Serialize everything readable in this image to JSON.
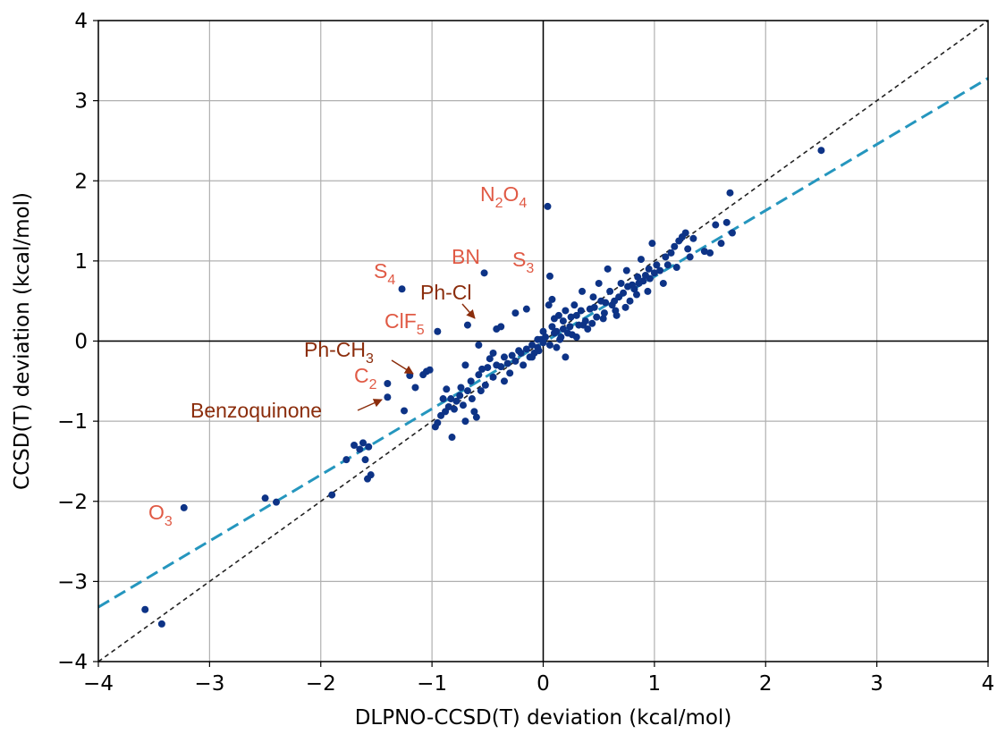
{
  "colors": {
    "points": "#0d3386",
    "fit_line": "#2596be",
    "identity_line": "#222222",
    "molecule_label": "#e05a45",
    "arrow_label": "#8b2d0c",
    "grid": "#b0b0b0",
    "axes": "#000000"
  },
  "chart_data": {
    "type": "scatter",
    "xlabel": "DLPNO-CCSD(T) deviation (kcal/mol)",
    "ylabel": "CCSD(T) deviation (kcal/mol)",
    "xlim": [
      -4,
      4
    ],
    "ylim": [
      -4,
      4
    ],
    "xticks": [
      -4,
      -3,
      -2,
      -1,
      0,
      1,
      2,
      3,
      4
    ],
    "yticks": [
      -4,
      -3,
      -2,
      -1,
      0,
      1,
      2,
      3,
      4
    ],
    "xtick_labels": [
      "−4",
      "−3",
      "−2",
      "−1",
      "0",
      "1",
      "2",
      "3",
      "4"
    ],
    "ytick_labels": [
      "−4",
      "−3",
      "−2",
      "−1",
      "0",
      "1",
      "2",
      "3",
      "4"
    ],
    "grid": true,
    "reference_lines": [
      {
        "kind": "identity",
        "style": "dashed",
        "from": [
          -4,
          -4
        ],
        "to": [
          4,
          4
        ]
      },
      {
        "kind": "linear-fit",
        "style": "dashed",
        "from": [
          -4,
          -3.32
        ],
        "to": [
          4,
          3.28
        ]
      }
    ],
    "points": [
      [
        -3.58,
        -3.35
      ],
      [
        -3.43,
        -3.53
      ],
      [
        -3.23,
        -2.08
      ],
      [
        -2.5,
        -1.96
      ],
      [
        -2.4,
        -2.01
      ],
      [
        -1.9,
        -1.92
      ],
      [
        -1.77,
        -1.48
      ],
      [
        -1.7,
        -1.3
      ],
      [
        -1.65,
        -1.35
      ],
      [
        -1.62,
        -1.27
      ],
      [
        -1.6,
        -1.48
      ],
      [
        -1.58,
        -1.72
      ],
      [
        -1.55,
        -1.67
      ],
      [
        -1.57,
        -1.32
      ],
      [
        -1.4,
        -0.53
      ],
      [
        -1.4,
        -0.7
      ],
      [
        -1.27,
        0.65
      ],
      [
        -1.25,
        -0.87
      ],
      [
        -1.2,
        -0.43
      ],
      [
        -1.15,
        -0.58
      ],
      [
        -1.05,
        -0.38
      ],
      [
        -1.02,
        -0.36
      ],
      [
        -0.95,
        0.12
      ],
      [
        -0.97,
        -1.07
      ],
      [
        -0.95,
        -1.02
      ],
      [
        -0.92,
        -0.93
      ],
      [
        -0.88,
        -0.88
      ],
      [
        -0.85,
        -0.82
      ],
      [
        -0.83,
        -0.72
      ],
      [
        -0.8,
        -0.85
      ],
      [
        -0.78,
        -0.75
      ],
      [
        -0.75,
        -0.68
      ],
      [
        -0.72,
        -0.8
      ],
      [
        -0.7,
        -1.0
      ],
      [
        -0.68,
        -0.62
      ],
      [
        -0.65,
        -0.5
      ],
      [
        -0.62,
        -0.88
      ],
      [
        -0.6,
        -0.95
      ],
      [
        -0.58,
        -0.42
      ],
      [
        -0.55,
        -0.35
      ],
      [
        -0.52,
        -0.55
      ],
      [
        -0.5,
        -0.33
      ],
      [
        -0.45,
        -0.45
      ],
      [
        -0.42,
        -0.3
      ],
      [
        -0.38,
        -0.32
      ],
      [
        -0.35,
        -0.2
      ],
      [
        -0.32,
        -0.28
      ],
      [
        -0.28,
        -0.18
      ],
      [
        -0.25,
        -0.25
      ],
      [
        -0.22,
        -0.12
      ],
      [
        -0.18,
        -0.3
      ],
      [
        -0.15,
        -0.1
      ],
      [
        -0.12,
        -0.2
      ],
      [
        -0.1,
        -0.05
      ],
      [
        -0.08,
        -0.15
      ],
      [
        -0.05,
        -0.08
      ],
      [
        -0.02,
        0.02
      ],
      [
        0.0,
        -0.02
      ],
      [
        0.02,
        0.05
      ],
      [
        -0.82,
        -1.2
      ],
      [
        -0.87,
        -0.6
      ],
      [
        -0.7,
        -0.3
      ],
      [
        -0.68,
        0.2
      ],
      [
        -0.58,
        -0.05
      ],
      [
        -0.53,
        0.85
      ],
      [
        -0.42,
        0.15
      ],
      [
        -0.38,
        0.18
      ],
      [
        -0.25,
        0.35
      ],
      [
        -0.15,
        0.4
      ],
      [
        0.04,
        1.68
      ],
      [
        0.06,
        0.81
      ],
      [
        0.08,
        0.52
      ],
      [
        0.1,
        0.28
      ],
      [
        0.12,
        0.12
      ],
      [
        0.15,
        0.02
      ],
      [
        0.18,
        0.15
      ],
      [
        0.2,
        -0.2
      ],
      [
        0.22,
        0.1
      ],
      [
        0.25,
        0.3
      ],
      [
        0.28,
        0.45
      ],
      [
        0.3,
        0.05
      ],
      [
        0.32,
        0.2
      ],
      [
        0.35,
        0.62
      ],
      [
        0.38,
        0.25
      ],
      [
        0.4,
        0.15
      ],
      [
        0.42,
        0.4
      ],
      [
        0.45,
        0.55
      ],
      [
        0.48,
        0.3
      ],
      [
        0.5,
        0.72
      ],
      [
        0.52,
        0.5
      ],
      [
        0.55,
        0.35
      ],
      [
        0.58,
        0.9
      ],
      [
        0.6,
        0.62
      ],
      [
        0.62,
        0.45
      ],
      [
        0.65,
        0.38
      ],
      [
        0.68,
        0.55
      ],
      [
        0.7,
        0.72
      ],
      [
        0.72,
        0.6
      ],
      [
        0.75,
        0.88
      ],
      [
        0.78,
        0.5
      ],
      [
        0.8,
        0.7
      ],
      [
        0.82,
        0.65
      ],
      [
        0.85,
        0.8
      ],
      [
        0.88,
        1.02
      ],
      [
        0.9,
        0.75
      ],
      [
        0.92,
        0.82
      ],
      [
        0.95,
        0.9
      ],
      [
        0.98,
        1.22
      ],
      [
        1.0,
        0.85
      ],
      [
        1.02,
        0.95
      ],
      [
        1.05,
        0.88
      ],
      [
        1.08,
        0.72
      ],
      [
        1.1,
        1.05
      ],
      [
        1.12,
        0.95
      ],
      [
        1.15,
        1.1
      ],
      [
        1.18,
        1.18
      ],
      [
        1.2,
        0.92
      ],
      [
        1.22,
        1.25
      ],
      [
        1.25,
        1.3
      ],
      [
        1.28,
        1.35
      ],
      [
        1.3,
        1.15
      ],
      [
        1.32,
        1.05
      ],
      [
        1.35,
        1.28
      ],
      [
        1.45,
        1.12
      ],
      [
        1.5,
        1.1
      ],
      [
        1.55,
        1.45
      ],
      [
        1.6,
        1.22
      ],
      [
        1.65,
        1.48
      ],
      [
        1.68,
        1.85
      ],
      [
        1.7,
        1.35
      ],
      [
        2.5,
        2.38
      ],
      [
        0.05,
        0.45
      ],
      [
        0.1,
        0.1
      ],
      [
        0.14,
        0.32
      ],
      [
        0.18,
        0.25
      ],
      [
        0.24,
        0.18
      ],
      [
        0.26,
        0.08
      ],
      [
        0.34,
        0.38
      ],
      [
        0.36,
        0.2
      ],
      [
        0.44,
        0.22
      ],
      [
        0.46,
        0.42
      ],
      [
        0.54,
        0.28
      ],
      [
        0.56,
        0.48
      ],
      [
        0.64,
        0.5
      ],
      [
        0.66,
        0.32
      ],
      [
        0.74,
        0.42
      ],
      [
        0.76,
        0.68
      ],
      [
        0.84,
        0.58
      ],
      [
        0.86,
        0.72
      ],
      [
        0.94,
        0.62
      ],
      [
        0.96,
        0.78
      ],
      [
        -0.05,
        0.02
      ],
      [
        -0.04,
        -0.12
      ],
      [
        0.06,
        -0.05
      ],
      [
        0.08,
        0.18
      ],
      [
        0.16,
        0.05
      ],
      [
        -0.3,
        -0.4
      ],
      [
        -0.48,
        -0.22
      ],
      [
        -0.56,
        -0.62
      ],
      [
        -0.64,
        -0.72
      ],
      [
        -0.74,
        -0.58
      ],
      [
        -0.9,
        -0.72
      ],
      [
        -1.08,
        -0.42
      ],
      [
        -0.2,
        -0.15
      ],
      [
        -0.1,
        -0.2
      ],
      [
        0.0,
        0.12
      ],
      [
        -0.35,
        -0.5
      ],
      [
        -0.45,
        -0.15
      ],
      [
        0.3,
        0.32
      ],
      [
        0.2,
        0.38
      ],
      [
        0.12,
        -0.08
      ]
    ],
    "annotations": [
      {
        "text": "N",
        "sub1": "2",
        "mid": "O",
        "sub2": "4",
        "group": "molecule"
      },
      {
        "text": "BN",
        "group": "molecule"
      },
      {
        "text": "S",
        "sub1": "3",
        "group": "molecule"
      },
      {
        "text": "S",
        "sub1": "4",
        "group": "molecule"
      },
      {
        "text": "Ph-Cl",
        "group": "arrow"
      },
      {
        "text": "ClF",
        "sub1": "5",
        "group": "molecule"
      },
      {
        "text": "Ph-CH",
        "sub1": "3",
        "group": "arrow"
      },
      {
        "text": "C",
        "sub1": "2",
        "group": "molecule"
      },
      {
        "text": "Benzoquinone",
        "group": "arrow"
      },
      {
        "text": "O",
        "sub1": "3",
        "group": "molecule"
      }
    ]
  }
}
